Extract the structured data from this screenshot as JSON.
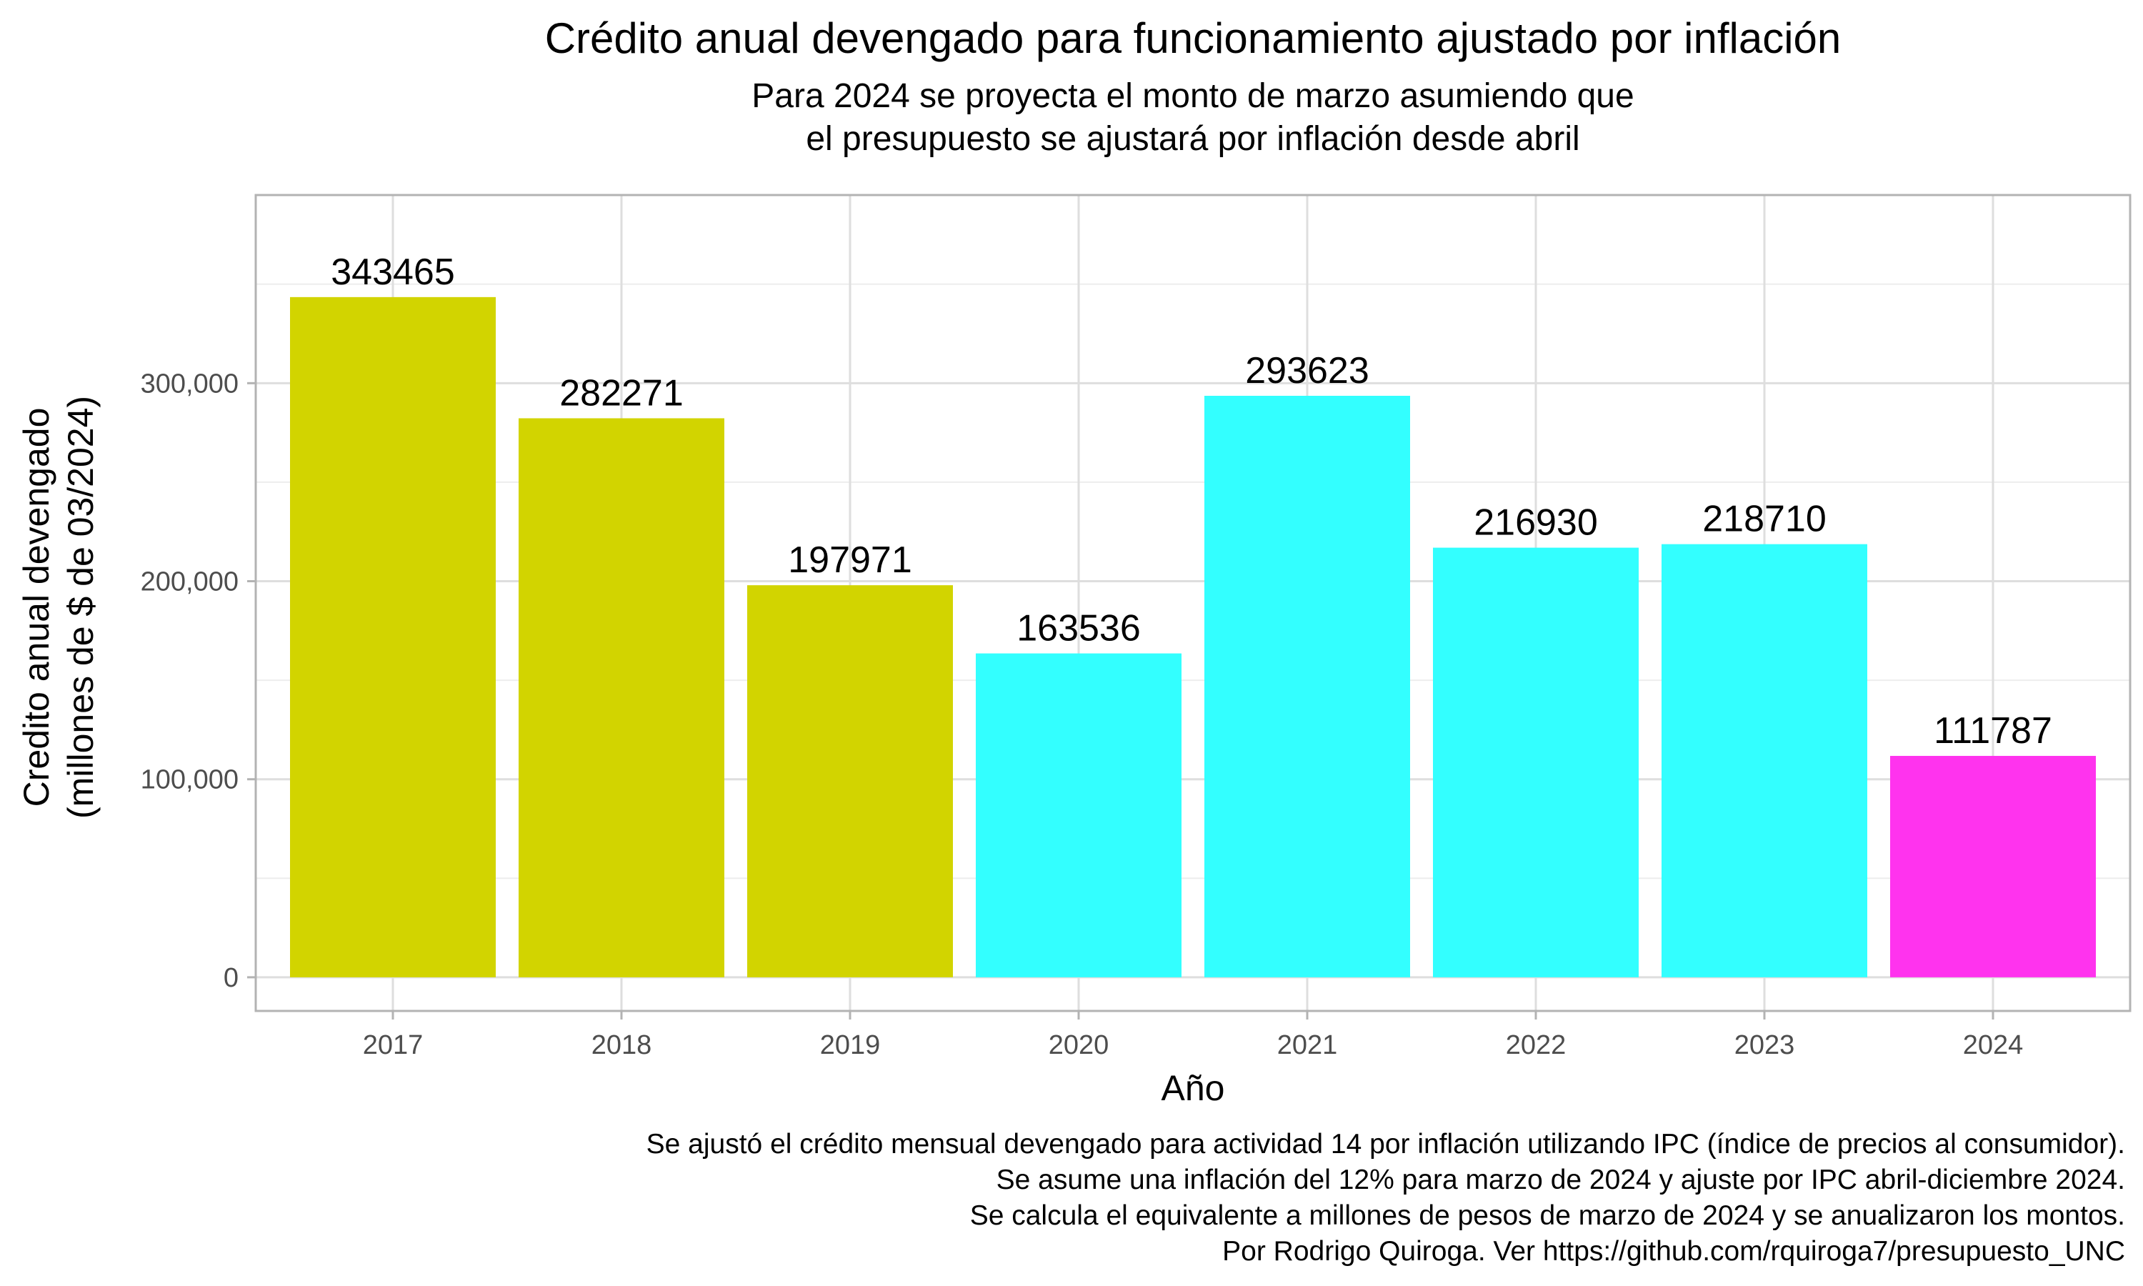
{
  "chart_data": {
    "type": "bar",
    "title": "Crédito anual devengado para funcionamiento ajustado por inflación",
    "subtitle": [
      "Para 2024 se proyecta el monto de marzo asumiendo que",
      "el presupuesto se ajustará por inflación desde abril"
    ],
    "xlabel": "Año",
    "ylabel": [
      "Credito anual devengado",
      "(millones de $ de 03/2024)"
    ],
    "categories": [
      "2017",
      "2018",
      "2019",
      "2020",
      "2021",
      "2022",
      "2023",
      "2024"
    ],
    "values": [
      343465,
      282271,
      197971,
      163536,
      293623,
      216930,
      218710,
      111787
    ],
    "data_labels": [
      "343465",
      "282271",
      "197971",
      "163536",
      "293623",
      "216930",
      "218710",
      "111787"
    ],
    "bar_colors": [
      "#D2D400",
      "#D2D400",
      "#D2D400",
      "#33FFFF",
      "#33FFFF",
      "#33FFFF",
      "#33FFFF",
      "#FF33EE"
    ],
    "ylim": [
      -17000,
      395000
    ],
    "yticks": [
      0,
      100000,
      200000,
      300000
    ],
    "ytick_labels": [
      "0",
      "100,000",
      "200,000",
      "300,000"
    ],
    "grid": true,
    "legend": "none",
    "caption": [
      "Se ajustó el crédito mensual devengado para actividad 14 por inflación utilizando IPC (índice de precios al consumidor).",
      "Se asume una inflación del 12% para marzo de 2024 y ajuste por IPC abril-diciembre 2024.",
      "Se calcula el equivalente a millones de pesos de marzo de 2024 y se anualizaron los montos.",
      "Por Rodrigo Quiroga. Ver https://github.com/rquiroga7/presupuesto_UNC "
    ]
  }
}
